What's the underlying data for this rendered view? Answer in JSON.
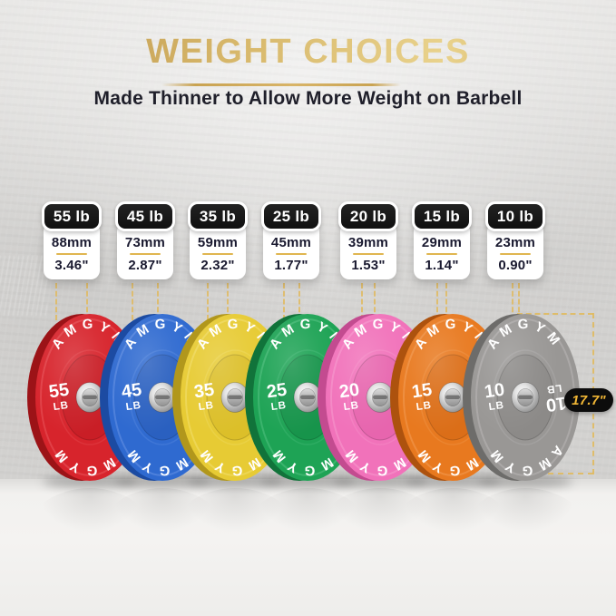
{
  "header": {
    "title": "WEIGHT CHOICES",
    "subtitle": "Made Thinner to Allow More Weight on Barbell"
  },
  "brand": "AMGYM",
  "unit_label": "LB",
  "diameter": {
    "label": "17.7\""
  },
  "plates": [
    {
      "name": "55 lb",
      "weight": "55",
      "mm": "88mm",
      "inches": "3.46\"",
      "face": "#d7242c",
      "rim": "#9c1317",
      "inner": "#c91e26",
      "light": "#f06a6f"
    },
    {
      "name": "45 lb",
      "weight": "45",
      "mm": "73mm",
      "inches": "2.87\"",
      "face": "#2f6ad0",
      "rim": "#1c4ba2",
      "inner": "#2a60c0",
      "light": "#7da2ec"
    },
    {
      "name": "35 lb",
      "weight": "35",
      "mm": "59mm",
      "inches": "2.32\"",
      "face": "#e7cb34",
      "rim": "#b1971c",
      "inner": "#dcbf29",
      "light": "#f8e684"
    },
    {
      "name": "25 lb",
      "weight": "25",
      "mm": "45mm",
      "inches": "1.77\"",
      "face": "#1ea355",
      "rim": "#11733a",
      "inner": "#17944b",
      "light": "#66cd92"
    },
    {
      "name": "20 lb",
      "weight": "20",
      "mm": "39mm",
      "inches": "1.53\"",
      "face": "#f172ba",
      "rim": "#c34b90",
      "inner": "#e765ae",
      "light": "#fbaad6"
    },
    {
      "name": "15 lb",
      "weight": "15",
      "mm": "29mm",
      "inches": "1.14\"",
      "face": "#e8791f",
      "rim": "#ad520e",
      "inner": "#db6e18",
      "light": "#f7ab68"
    },
    {
      "name": "10 lb",
      "weight": "10",
      "mm": "23mm",
      "inches": "0.90\"",
      "face": "#999795",
      "rim": "#6d6c6a",
      "inner": "#8c8a88",
      "light": "#c6c4c2"
    }
  ],
  "colors": {
    "gold": "#d0a85a",
    "dash": "#e0ba5f",
    "text_dark": "#1f1f2a",
    "label_bg": "#0c0c0c",
    "label_text": "#f2b735"
  }
}
